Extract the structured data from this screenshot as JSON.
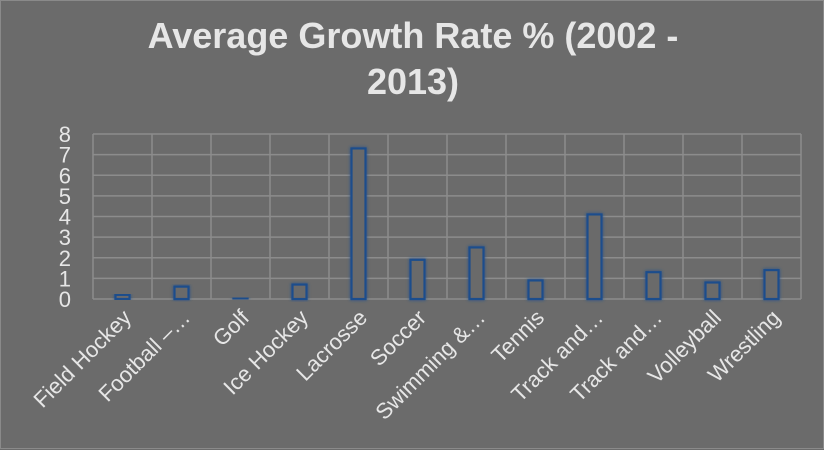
{
  "chart_data": {
    "type": "bar",
    "title_lines": [
      "Average Growth Rate % (2002 -",
      "2013)"
    ],
    "categories": [
      "Field Hockey",
      "Football –…",
      "Golf",
      "Ice Hockey",
      "Lacrosse",
      "Soccer",
      "Swimming &…",
      "Tennis",
      "Track and…",
      "Track and…",
      "Volleyball",
      "Wrestling"
    ],
    "values": [
      0.2,
      0.6,
      0.05,
      0.7,
      7.3,
      1.9,
      2.5,
      0.9,
      4.1,
      1.3,
      0.8,
      1.4
    ],
    "ylim": [
      0,
      8
    ],
    "yticks": [
      "0",
      "1",
      "2",
      "3",
      "4",
      "5",
      "6",
      "7",
      "8"
    ],
    "xlabel": "",
    "ylabel": "",
    "grid": true,
    "legend": "none",
    "colors": {
      "background": "#6b6b6b",
      "bar_fill": "#6b6b6b",
      "bar_stroke": "#1f4e8c",
      "bar_glow": "#3d6fb0",
      "grid": "#8c8c8c",
      "text": "#e6e6e6"
    }
  }
}
